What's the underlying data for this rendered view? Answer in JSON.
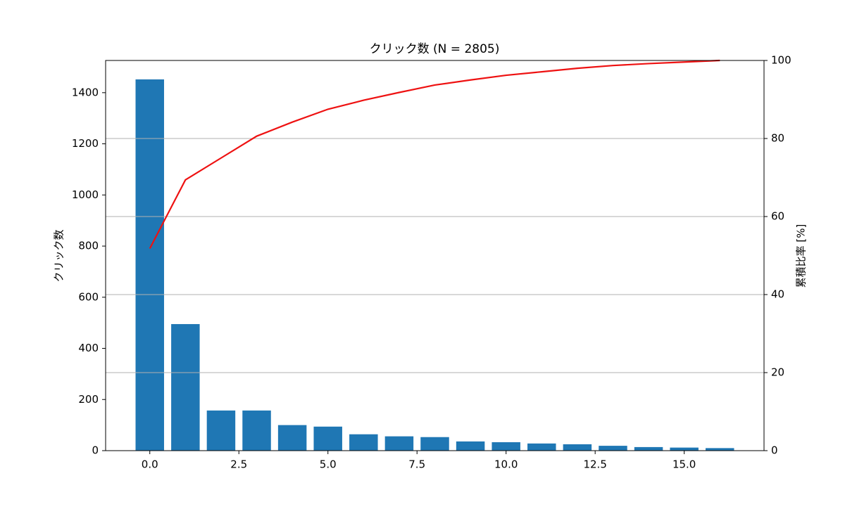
{
  "chart_data": {
    "type": "combo",
    "title": "クリック数 (N = 2805)",
    "y_label": "クリック数",
    "y2_label": "累積比率 [%]",
    "x": [
      0,
      1,
      2,
      3,
      4,
      5,
      6,
      7,
      8,
      9,
      10,
      11,
      12,
      13,
      14,
      15,
      16
    ],
    "series": [
      {
        "type": "bar",
        "color": "#1f77b4",
        "values": [
          1452,
          495,
          157,
          157,
          100,
          94,
          64,
          56,
          53,
          36,
          33,
          28,
          25,
          19,
          14,
          12,
          10
        ]
      },
      {
        "type": "line",
        "color": "#ee1111",
        "axis": "y2",
        "values": [
          51.8,
          69.4,
          75.0,
          80.6,
          84.2,
          87.5,
          89.8,
          91.8,
          93.7,
          95.0,
          96.2,
          97.1,
          98.0,
          98.7,
          99.2,
          99.6,
          100
        ]
      }
    ],
    "bar_width": 0.8,
    "xlim": [
      -1.24,
      17.24
    ],
    "xticks": [
      {
        "value": 0,
        "label": "0.0"
      },
      {
        "value": 2.5,
        "label": "2.5"
      },
      {
        "value": 5,
        "label": "5.0"
      },
      {
        "value": 7.5,
        "label": "7.5"
      },
      {
        "value": 10,
        "label": "10.0"
      },
      {
        "value": 12.5,
        "label": "12.5"
      },
      {
        "value": 15,
        "label": "15.0"
      }
    ],
    "ylim": [
      0,
      1526
    ],
    "yticks": [
      0,
      200,
      400,
      600,
      800,
      1000,
      1200,
      1400
    ],
    "y2lim": [
      0,
      100
    ],
    "y2ticks": [
      0,
      20,
      40,
      60,
      80,
      100
    ],
    "grid": "y2"
  }
}
